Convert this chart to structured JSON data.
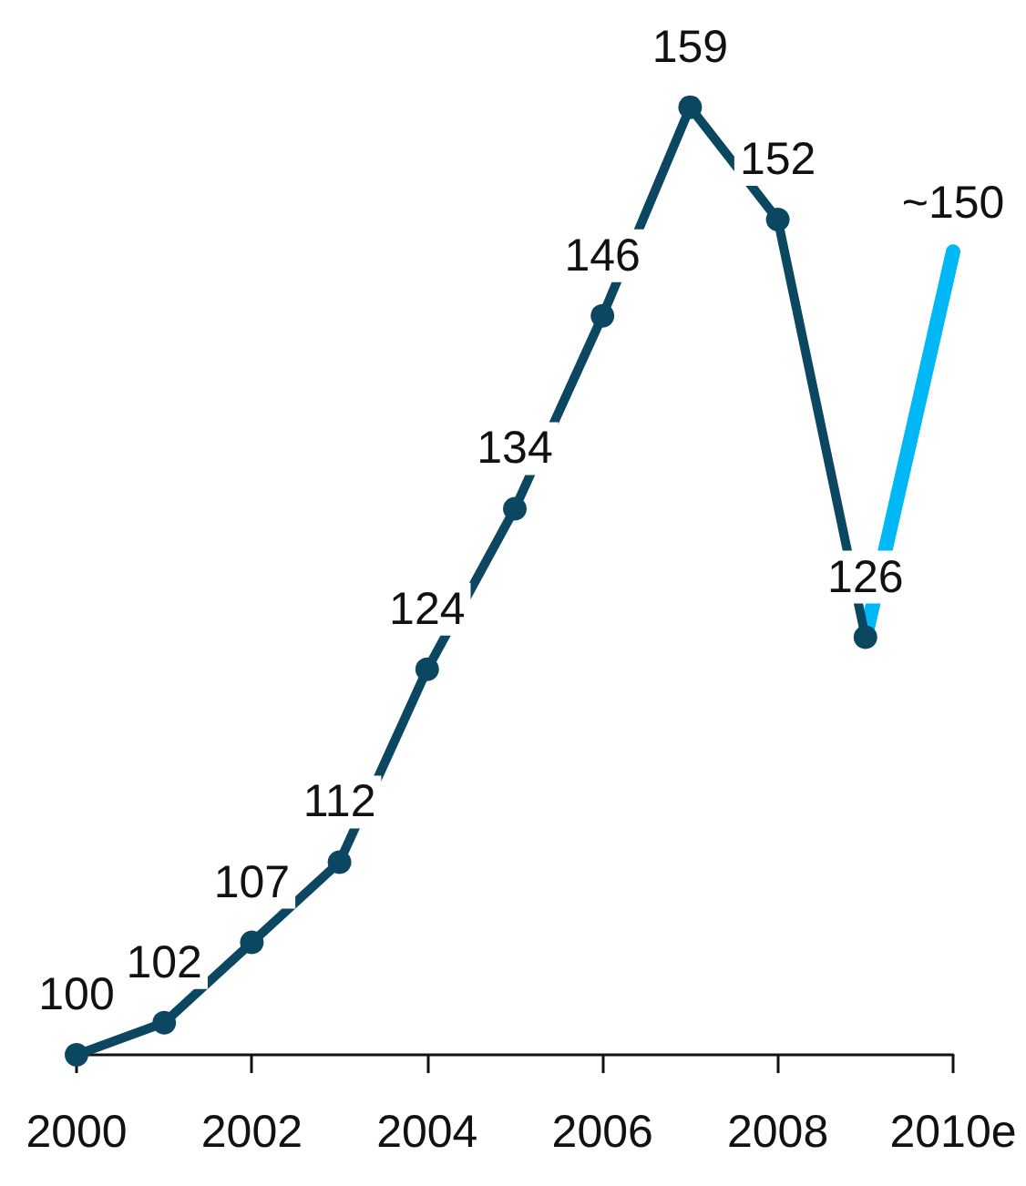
{
  "chart_data": {
    "type": "line",
    "categories": [
      "2000",
      null,
      "2002",
      null,
      "2004",
      null,
      "2006",
      null,
      "2008",
      null,
      "2010e"
    ],
    "series": [
      {
        "color": "#0b4760",
        "values": [
          100,
          102,
          107,
          112,
          124,
          134,
          146,
          159,
          152,
          126,
          null
        ],
        "value_labels": [
          "100",
          "102",
          "107",
          "112",
          "124",
          "134",
          "146",
          "159",
          "152",
          "126",
          null
        ],
        "marker": "circle"
      },
      {
        "color": "#00b8f5",
        "values": [
          null,
          null,
          null,
          null,
          null,
          null,
          null,
          null,
          null,
          126,
          150
        ],
        "value_labels": [
          null,
          null,
          null,
          null,
          null,
          null,
          null,
          null,
          null,
          null,
          "~150"
        ],
        "marker": "none"
      }
    ],
    "grid": false
  }
}
